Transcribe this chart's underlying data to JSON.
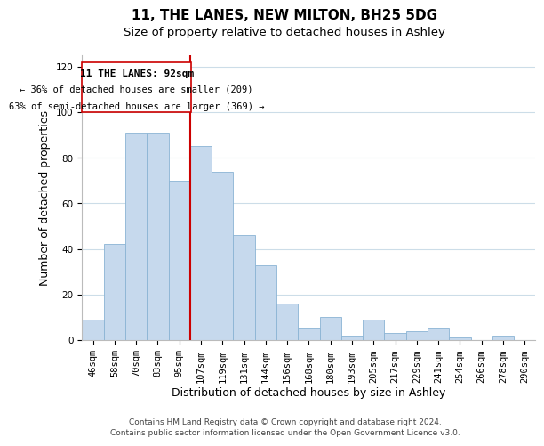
{
  "title": "11, THE LANES, NEW MILTON, BH25 5DG",
  "subtitle": "Size of property relative to detached houses in Ashley",
  "xlabel": "Distribution of detached houses by size in Ashley",
  "ylabel": "Number of detached properties",
  "categories": [
    "46sqm",
    "58sqm",
    "70sqm",
    "83sqm",
    "95sqm",
    "107sqm",
    "119sqm",
    "131sqm",
    "144sqm",
    "156sqm",
    "168sqm",
    "180sqm",
    "193sqm",
    "205sqm",
    "217sqm",
    "229sqm",
    "241sqm",
    "254sqm",
    "266sqm",
    "278sqm",
    "290sqm"
  ],
  "values": [
    9,
    42,
    91,
    91,
    70,
    85,
    74,
    46,
    33,
    16,
    5,
    10,
    2,
    9,
    3,
    4,
    5,
    1,
    0,
    2,
    0
  ],
  "bar_color": "#c6d9ed",
  "bar_edge_color": "#8ab4d4",
  "marker_line_index": 4,
  "marker_label": "11 THE LANES: 92sqm",
  "annotation_line1": "← 36% of detached houses are smaller (209)",
  "annotation_line2": "63% of semi-detached houses are larger (369) →",
  "marker_line_color": "#cc0000",
  "box_edge_color": "#cc0000",
  "ylim": [
    0,
    125
  ],
  "yticks": [
    0,
    20,
    40,
    60,
    80,
    100,
    120
  ],
  "footer1": "Contains HM Land Registry data © Crown copyright and database right 2024.",
  "footer2": "Contains public sector information licensed under the Open Government Licence v3.0.",
  "background_color": "#ffffff",
  "grid_color": "#ccdde8",
  "title_fontsize": 11,
  "subtitle_fontsize": 9.5,
  "axis_label_fontsize": 9,
  "tick_fontsize": 7.5,
  "annotation_fontsize": 8,
  "footer_fontsize": 6.5
}
